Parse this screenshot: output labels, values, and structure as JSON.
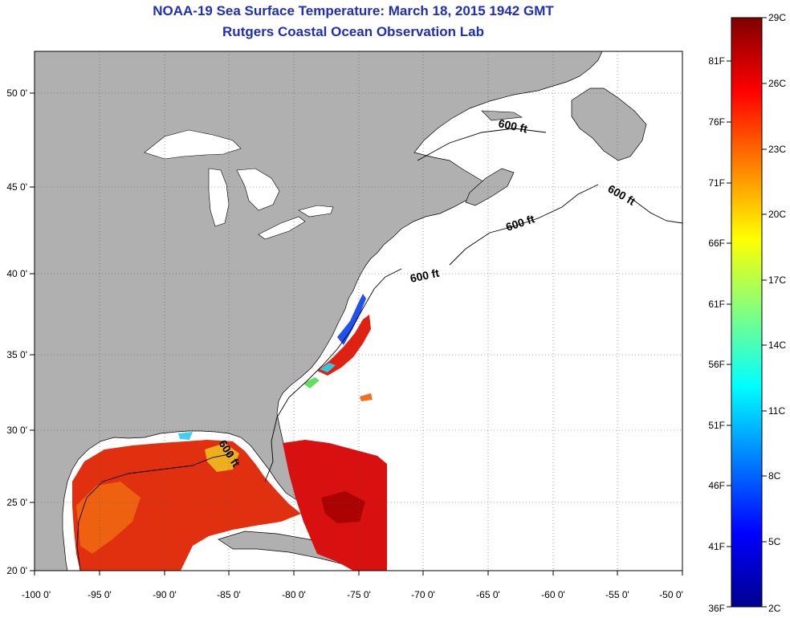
{
  "title": "NOAA-19 Sea Surface Temperature:  March 18, 2015 1942 GMT",
  "subtitle": "Rutgers Coastal Ocean Observation Lab",
  "map": {
    "lon_range": [
      -100,
      -50
    ],
    "lat_range": [
      20,
      52
    ],
    "lon_ticks": [
      "-100 0'",
      "-95 0'",
      "-90 0'",
      "-85 0'",
      "-80 0'",
      "-75 0'",
      "-70 0'",
      "-65 0'",
      "-60 0'",
      "-55 0'",
      "-50 0'"
    ],
    "lat_ticks": [
      "20 0'",
      "25 0'",
      "30 0'",
      "35 0'",
      "40 0'",
      "45 0'",
      "50 0'"
    ],
    "grid": "dotted",
    "contour_labels": [
      "600 ft",
      "600 ft",
      "600 ft",
      "600 ft",
      "600 ft"
    ],
    "colors": {
      "land": "#b0b0b0",
      "water": "#ffffff"
    }
  },
  "colorbar": {
    "celsius_labels": [
      "29C",
      "26C",
      "23C",
      "20C",
      "17C",
      "14C",
      "11C",
      "8C",
      "5C",
      "2C"
    ],
    "fahrenheit_labels": [
      "81F",
      "76F",
      "71F",
      "66F",
      "61F",
      "56F",
      "51F",
      "46F",
      "41F",
      "36F"
    ],
    "range_c": [
      2,
      29
    ],
    "colormap": "jet"
  }
}
